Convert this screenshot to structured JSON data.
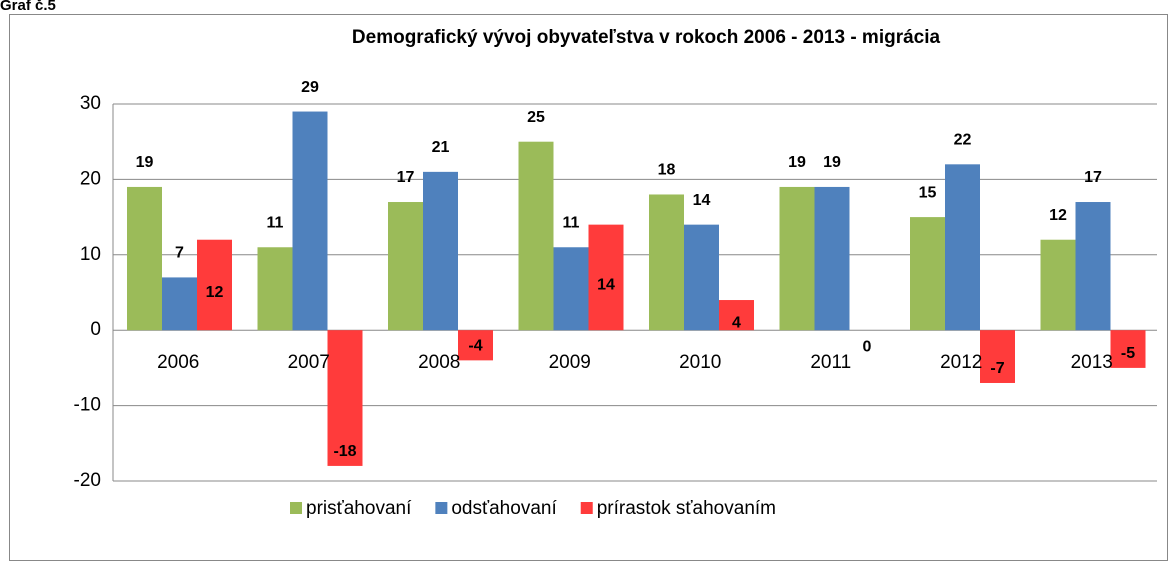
{
  "caption": "Graf č.5",
  "chart_data": {
    "type": "bar",
    "title": "Demografický vývoj obyvateľstva v rokoch 2006 - 2013 - migrácia",
    "categories": [
      "2006",
      "2007",
      "2008",
      "2009",
      "2010",
      "2011",
      "2012",
      "2013"
    ],
    "series": [
      {
        "name": "prisťahovaní",
        "color": "#9bbb59",
        "values": [
          19,
          11,
          17,
          25,
          18,
          19,
          15,
          12
        ]
      },
      {
        "name": "odsťahovaní",
        "color": "#4f81bd",
        "values": [
          7,
          29,
          21,
          11,
          14,
          19,
          22,
          17
        ]
      },
      {
        "name": "prírastok sťahovaním",
        "color": "#ff3b3b",
        "values": [
          12,
          -18,
          -4,
          14,
          4,
          0,
          -7,
          -5
        ]
      }
    ],
    "ylim": [
      -20,
      30
    ],
    "yticks": [
      -20,
      -10,
      0,
      10,
      20,
      30
    ],
    "grid": true,
    "legend": "bottom"
  }
}
